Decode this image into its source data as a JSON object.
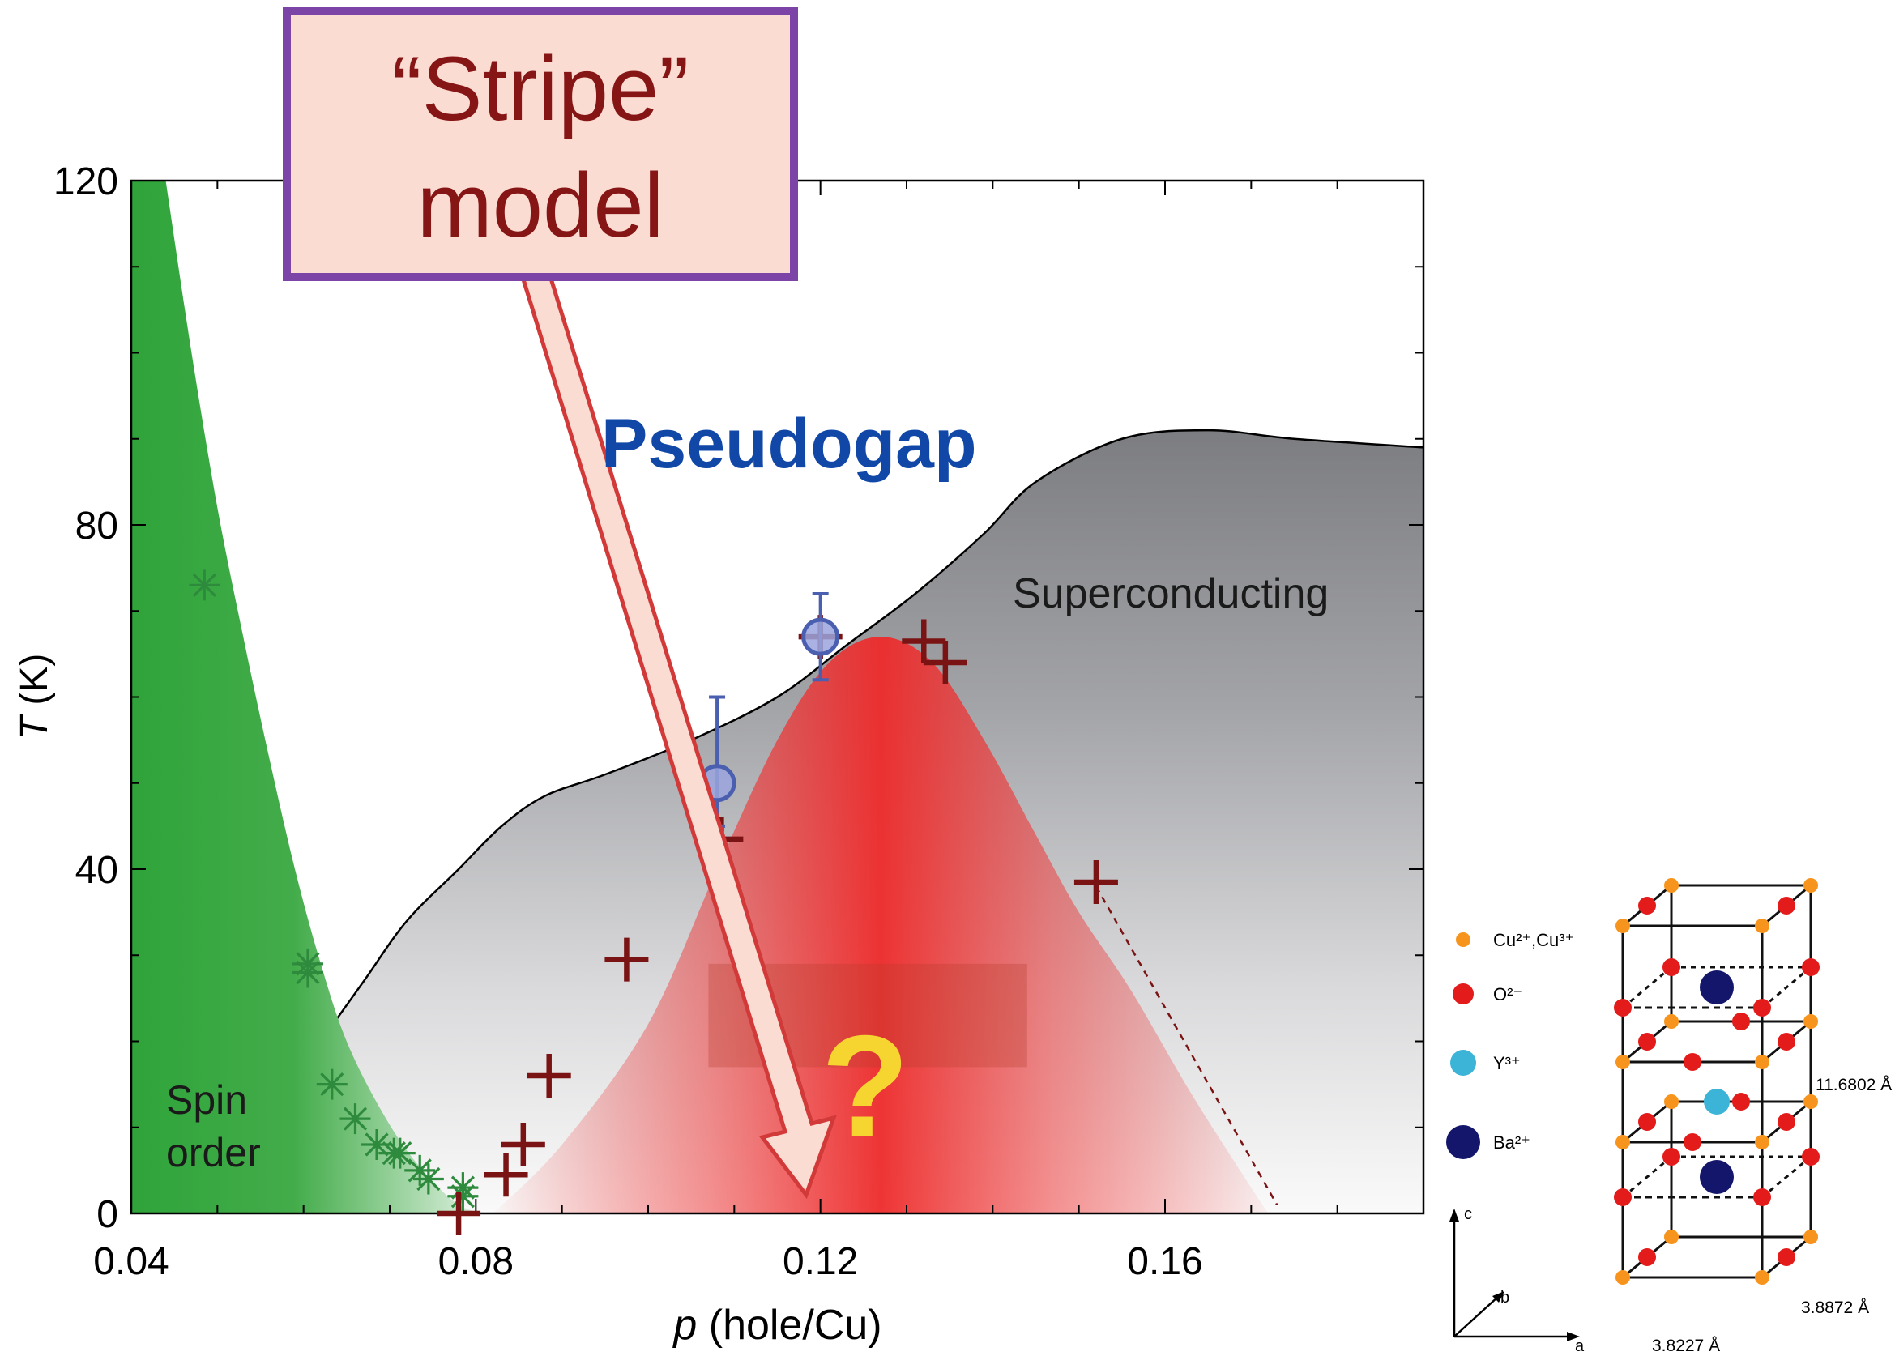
{
  "colors": {
    "spin": "#2fa43a",
    "sc_dark": "#7e7f83",
    "cdw_red": "#ee2a2a",
    "plus_marker": "#7a1414",
    "star_marker": "#2e8b3e",
    "circle_marker": "#4a5fb0",
    "circle_fill": "#9aa4dd",
    "callout_fill": "#fbdcd2",
    "callout_border": "#7b44a6",
    "callout_text": "#861515",
    "pseudogap_text": "#1148a8",
    "question": "#f7d531",
    "cu": "#f7941d",
    "o": "#e31b1b",
    "y": "#3cb4d8",
    "ba": "#14166b"
  },
  "chart_data": {
    "type": "scatter",
    "xlabel_var": "p",
    "xlabel_unit": "(hole/Cu)",
    "ylabel_var": "T",
    "ylabel_unit": "(K)",
    "xlim": [
      0.04,
      0.19
    ],
    "ylim": [
      0,
      120
    ],
    "xticks": [
      0.04,
      0.08,
      0.12,
      0.16
    ],
    "xtick_labels": [
      "0.04",
      "0.08",
      "0.12",
      "0.16"
    ],
    "yticks": [
      0,
      40,
      80,
      120
    ],
    "ytick_labels": [
      "0",
      "40",
      "80",
      "120"
    ],
    "regions": {
      "spin_order": "Spin order",
      "spin_order_lines": [
        "Spin",
        "order"
      ],
      "superconducting": "Superconducting",
      "pseudogap": "Pseudogap",
      "question": "?"
    },
    "spin_boundary": [
      [
        0.044,
        120
      ],
      [
        0.047,
        100
      ],
      [
        0.05,
        82
      ],
      [
        0.053,
        67
      ],
      [
        0.056,
        53
      ],
      [
        0.059,
        40
      ],
      [
        0.062,
        29
      ],
      [
        0.065,
        20
      ],
      [
        0.069,
        12
      ],
      [
        0.073,
        6
      ],
      [
        0.078,
        1
      ],
      [
        0.082,
        0
      ]
    ],
    "sc_boundary": [
      [
        0.062,
        20
      ],
      [
        0.067,
        27
      ],
      [
        0.072,
        34
      ],
      [
        0.078,
        40
      ],
      [
        0.083,
        45
      ],
      [
        0.088,
        48.5
      ],
      [
        0.095,
        51
      ],
      [
        0.105,
        55
      ],
      [
        0.115,
        60
      ],
      [
        0.123,
        66
      ],
      [
        0.131,
        72
      ],
      [
        0.139,
        79
      ],
      [
        0.145,
        85
      ],
      [
        0.155,
        90
      ],
      [
        0.165,
        91
      ],
      [
        0.175,
        90
      ],
      [
        0.19,
        89
      ]
    ],
    "cdw_dome": [
      [
        0.082,
        0
      ],
      [
        0.09,
        8
      ],
      [
        0.1,
        22
      ],
      [
        0.108,
        40
      ],
      [
        0.115,
        55
      ],
      [
        0.121,
        64
      ],
      [
        0.127,
        67
      ],
      [
        0.133,
        64
      ],
      [
        0.139,
        55
      ],
      [
        0.145,
        44
      ],
      [
        0.15,
        35
      ],
      [
        0.156,
        26
      ],
      [
        0.163,
        14
      ],
      [
        0.17,
        3
      ],
      [
        0.172,
        0
      ]
    ],
    "cdw_dashed": [
      [
        0.152,
        38
      ],
      [
        0.173,
        1
      ]
    ],
    "spin_order_points": {
      "marker": "asterisk",
      "x": [
        0.0485,
        0.0605,
        0.0605,
        0.0633,
        0.066,
        0.0685,
        0.0705,
        0.0712,
        0.0735,
        0.0745,
        0.0785,
        0.0785
      ],
      "y": [
        73,
        29,
        28,
        15,
        11,
        8,
        7,
        7,
        5,
        4,
        3,
        2
      ]
    },
    "cdw_points": {
      "marker": "plus",
      "x": [
        0.078,
        0.0835,
        0.0855,
        0.0885,
        0.0975,
        0.1085,
        0.12,
        0.132,
        0.1345,
        0.152
      ],
      "y": [
        0,
        4.5,
        8,
        16,
        29.5,
        43.5,
        67,
        66.5,
        64,
        38.5
      ]
    },
    "pseudogap_points": {
      "marker": "circle",
      "x": [
        0.108,
        0.12
      ],
      "y": [
        50,
        67
      ],
      "yerr_low": [
        5,
        5
      ],
      "yerr_high": [
        10,
        5
      ]
    },
    "inconclusive_band": {
      "x": [
        0.107,
        0.144
      ],
      "y": [
        17,
        29
      ]
    }
  },
  "callout": {
    "line1": "“Stripe”",
    "line2": "model"
  },
  "crystal": {
    "legend": [
      {
        "key": "cu",
        "label": "Cu²⁺,Cu³⁺"
      },
      {
        "key": "o",
        "label": "O²⁻"
      },
      {
        "key": "y",
        "label": "Y³⁺"
      },
      {
        "key": "ba",
        "label": "Ba²⁺"
      }
    ],
    "axes": {
      "c": "c",
      "b": "b",
      "a": "a"
    },
    "dims": {
      "c": "11.6802 Å",
      "b": "3.8872 Å",
      "a": "3.8227 Å"
    }
  }
}
